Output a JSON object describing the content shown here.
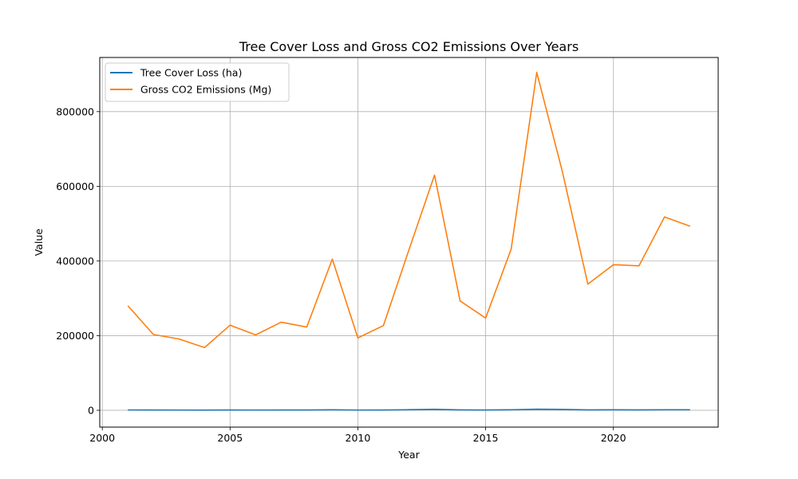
{
  "chart_data": {
    "type": "line",
    "title": "Tree Cover Loss and Gross CO2 Emissions Over Years",
    "xlabel": "Year",
    "ylabel": "Value",
    "xlim": [
      1999.9,
      2024.1
    ],
    "ylim": [
      -45000,
      945000
    ],
    "xticks": [
      2000,
      2005,
      2010,
      2015,
      2020
    ],
    "yticks": [
      0,
      200000,
      400000,
      600000,
      800000
    ],
    "grid": true,
    "legend_position": "top-left",
    "x": [
      2001,
      2002,
      2003,
      2004,
      2005,
      2006,
      2007,
      2008,
      2009,
      2010,
      2011,
      2012,
      2013,
      2014,
      2015,
      2016,
      2017,
      2018,
      2019,
      2020,
      2021,
      2022,
      2023
    ],
    "series": [
      {
        "name": "Tree Cover Loss (ha)",
        "color": "#1f77b4",
        "values": [
          1000,
          800,
          700,
          600,
          800,
          700,
          800,
          750,
          1300,
          700,
          800,
          1600,
          2700,
          1100,
          900,
          1500,
          3000,
          2400,
          1200,
          1400,
          1200,
          1500,
          1500
        ]
      },
      {
        "name": "Gross CO2 Emissions (Mg)",
        "color": "#ff7f0e",
        "values": [
          280000,
          203000,
          191000,
          168000,
          228000,
          202000,
          236000,
          223000,
          405000,
          194000,
          227000,
          430000,
          630000,
          293000,
          247000,
          432000,
          905000,
          640000,
          338000,
          390000,
          387000,
          518000,
          493000
        ]
      }
    ]
  }
}
